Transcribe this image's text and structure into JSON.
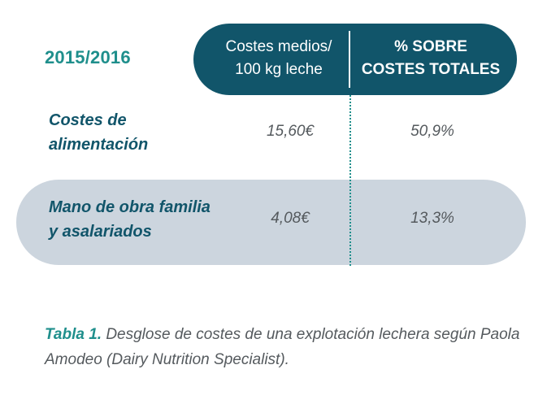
{
  "table": {
    "year": "2015/2016",
    "headers": {
      "col1_line1": "Costes medios/",
      "col1_line2": "100 kg leche",
      "col2_line1": "% SOBRE",
      "col2_line2": "COSTES TOTALES"
    },
    "rows": [
      {
        "label_line1": "Costes de",
        "label_line2": "alimentación",
        "cost": "15,60€",
        "percent": "50,9%"
      },
      {
        "label_line1": "Mano de obra familia",
        "label_line2": "y asalariados",
        "cost": "4,08€",
        "percent": "13,3%"
      }
    ]
  },
  "caption": {
    "label": "Tabla 1.",
    "text": " Desglose de costes de una explotación lechera según Paola Amodeo (Dairy Nutrition Specialist)."
  },
  "colors": {
    "header_bg": "#11556a",
    "accent_teal": "#1f8f8c",
    "band_bg": "#ccd5de",
    "value_text": "#555a5e"
  }
}
